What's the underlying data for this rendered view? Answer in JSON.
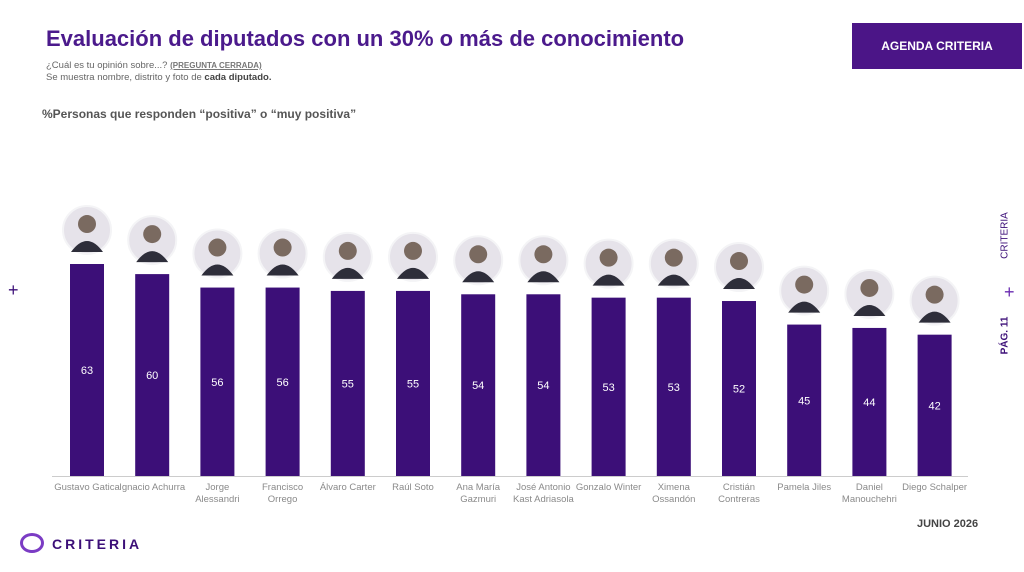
{
  "chart_data": {
    "type": "bar",
    "title": "Evaluación de diputados con un 30% o más de conocimiento",
    "subtitle": "%Personas que responden “positiva” o “muy positiva”",
    "categories": [
      "Gustavo Gatica",
      "Ignacio Achurra",
      "Jorge Alessandri",
      "Francisco Orrego",
      "Álvaro Carter",
      "Raúl Soto",
      "Ana María Gazmuri",
      "José Antonio Kast Adriasola",
      "Gonzalo Winter",
      "Ximena Ossandón",
      "Cristián Contreras",
      "Pamela Jiles",
      "Daniel Manouchehri",
      "Diego Schalper"
    ],
    "values": [
      63,
      60,
      56,
      56,
      55,
      55,
      54,
      54,
      53,
      53,
      52,
      45,
      44,
      42
    ],
    "color": "#3c0f78"
  },
  "header": {
    "question": "¿Cuál es tu opinión sobre...?",
    "question_tag": "(PREGUNTA CERRADA)",
    "note": "Se muestra nombre, distrito y foto de",
    "note_bold": "cada diputado.",
    "button": "AGENDA CRITERIA"
  },
  "footer": {
    "logo": "CRITERIA",
    "date": "JUNIO 2026"
  },
  "side": {
    "left_mark": "+",
    "brand": "CRITERIA",
    "right_mark": "+",
    "page": "PÁG. 11"
  }
}
